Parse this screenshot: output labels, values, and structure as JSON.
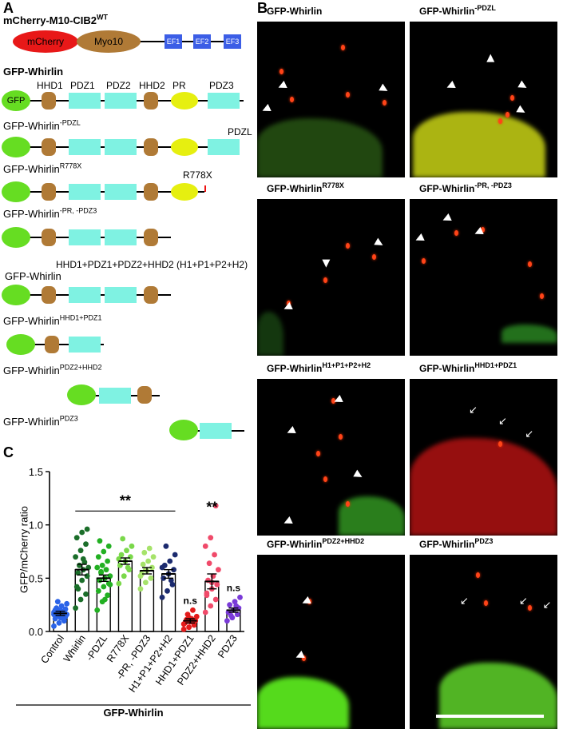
{
  "panels": {
    "a": "A",
    "b": "B",
    "c": "C"
  },
  "panel_a": {
    "cib2_name": "mCherry-M10-CIB2",
    "cib2_sup": "WT",
    "cib2_domains": [
      "mCherry",
      "Myo10",
      "EF1",
      "EF2",
      "EF3"
    ],
    "whirlin_name": "GFP-Whirlin",
    "domain_labels": [
      "HHD1",
      "PDZ1",
      "PDZ2",
      "HHD2",
      "PR",
      "PDZ3"
    ],
    "gfp_label": "GFP",
    "constructs": [
      {
        "name": "GFP-Whirlin",
        "sup": "-PDZL",
        "trunc_label": "PDZL"
      },
      {
        "name": "GFP-Whirlin",
        "sup": "R778X",
        "trunc_label": "R778X"
      },
      {
        "name": "GFP-Whirlin",
        "sup": "-PR, -PDZ3"
      },
      {
        "above": "HHD1+PDZ1+PDZ2+HHD2 (H1+P1+P2+H2)",
        "name": "GFP-Whirlin"
      },
      {
        "name": "GFP-Whirlin",
        "sup": "HHD1+PDZ1"
      },
      {
        "name": "GFP-Whirlin",
        "sup": "PDZ2+HHD2"
      },
      {
        "name": "GFP-Whirlin",
        "sup": "PDZ3"
      }
    ]
  },
  "panel_b": {
    "images": [
      {
        "title": "GFP-Whirlin",
        "sup": ""
      },
      {
        "title": "GFP-Whirlin",
        "sup": "-PDZL"
      },
      {
        "title": "GFP-Whirlin",
        "sup": "R778X"
      },
      {
        "title": "GFP-Whirlin",
        "sup": "-PR, -PDZ3"
      },
      {
        "title": "GFP-Whirlin",
        "sup": "H1+P1+P2+H2"
      },
      {
        "title": "GFP-Whirlin",
        "sup": "HHD1+PDZ1"
      },
      {
        "title": "GFP-Whirlin",
        "sup": "PDZ2+HHD2"
      },
      {
        "title": "GFP-Whirlin",
        "sup": "PDZ3"
      }
    ]
  },
  "chart_data": {
    "type": "bar",
    "ylabel": "GFP/mCherry ratio",
    "xlabel": "GFP-Whirlin",
    "ylim": [
      0,
      1.5
    ],
    "yticks": [
      "0.0",
      "0.5",
      "1.0",
      "1.5"
    ],
    "categories": [
      "Control",
      "Whirlin",
      "-PDZL",
      "R778X",
      "-PR, -PDZ3",
      "H1+P1+P2+H2",
      "HHD1+PDZ1",
      "PDZ2+HHD2",
      "PDZ3"
    ],
    "values": [
      0.17,
      0.58,
      0.5,
      0.66,
      0.57,
      0.54,
      0.1,
      0.47,
      0.2
    ],
    "errors": [
      0.02,
      0.05,
      0.03,
      0.03,
      0.03,
      0.04,
      0.02,
      0.07,
      0.02
    ],
    "colors": [
      "#2a63e8",
      "#1b6e2a",
      "#22b022",
      "#7ad84a",
      "#a6e36a",
      "#1b2a6e",
      "#e41b1b",
      "#f04a6a",
      "#7a3ad8"
    ],
    "points": [
      [
        0.05,
        0.08,
        0.1,
        0.12,
        0.13,
        0.14,
        0.15,
        0.15,
        0.16,
        0.17,
        0.17,
        0.18,
        0.18,
        0.19,
        0.2,
        0.2,
        0.21,
        0.22,
        0.24,
        0.26,
        0.28,
        0.12,
        0.16,
        0.19
      ],
      [
        0.22,
        0.3,
        0.35,
        0.42,
        0.48,
        0.52,
        0.55,
        0.58,
        0.6,
        0.62,
        0.65,
        0.7,
        0.76,
        0.82,
        0.88,
        0.93,
        0.96,
        0.4,
        0.68
      ],
      [
        0.2,
        0.28,
        0.34,
        0.38,
        0.42,
        0.45,
        0.48,
        0.5,
        0.52,
        0.55,
        0.58,
        0.6,
        0.62,
        0.66,
        0.7,
        0.75,
        0.8,
        0.85,
        0.3,
        0.44,
        0.56
      ],
      [
        0.45,
        0.52,
        0.58,
        0.62,
        0.66,
        0.7,
        0.72,
        0.76,
        0.8,
        0.87,
        0.6,
        0.68
      ],
      [
        0.4,
        0.46,
        0.5,
        0.54,
        0.57,
        0.6,
        0.63,
        0.66,
        0.7,
        0.74,
        0.78,
        0.52,
        0.58
      ],
      [
        0.32,
        0.38,
        0.44,
        0.5,
        0.54,
        0.58,
        0.62,
        0.66,
        0.72,
        0.8,
        0.48,
        0.6
      ],
      [
        0.02,
        0.04,
        0.06,
        0.08,
        0.09,
        0.1,
        0.11,
        0.12,
        0.14,
        0.16,
        0.2,
        0.07,
        0.13
      ],
      [
        0.18,
        0.24,
        0.3,
        0.36,
        0.4,
        0.44,
        0.48,
        0.52,
        0.58,
        0.64,
        0.72,
        0.8,
        0.88,
        1.18,
        0.34,
        0.46
      ],
      [
        0.1,
        0.13,
        0.16,
        0.18,
        0.2,
        0.22,
        0.25,
        0.28,
        0.32,
        0.15,
        0.24
      ]
    ],
    "annotations": [
      {
        "text": "**",
        "span": [
          1,
          5
        ]
      },
      {
        "text": "n.s",
        "category": 6
      },
      {
        "text": "**",
        "category": 7
      },
      {
        "text": "n.s",
        "category": 8
      }
    ]
  }
}
